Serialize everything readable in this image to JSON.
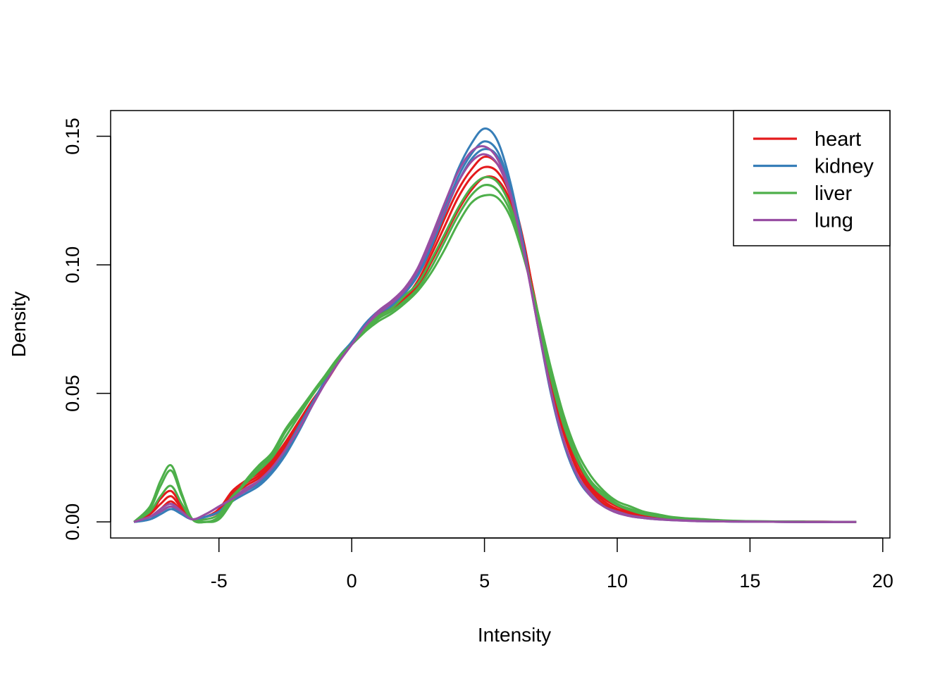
{
  "chart_data": {
    "type": "line",
    "title": "",
    "xlabel": "Intensity",
    "ylabel": "Density",
    "xlim": [
      -9,
      20
    ],
    "ylim": [
      0,
      0.16
    ],
    "xticks": [
      -5,
      0,
      5,
      10,
      15,
      20
    ],
    "xtick_labels": [
      "-5",
      "0",
      "5",
      "10",
      "15",
      "20"
    ],
    "yticks": [
      0,
      0.05,
      0.1,
      0.15
    ],
    "ytick_labels": [
      "0.00",
      "0.05",
      "0.10",
      "0.15"
    ],
    "grid": false,
    "legend_position": "top-right",
    "legend": [
      {
        "label": "heart",
        "color": "#E41A1C"
      },
      {
        "label": "kidney",
        "color": "#377EB8"
      },
      {
        "label": "liver",
        "color": "#4DAF4A"
      },
      {
        "label": "lung",
        "color": "#984EA3"
      }
    ],
    "x": [
      -8.2,
      -7.6,
      -7.2,
      -6.8,
      -6.4,
      -6.0,
      -5.5,
      -5.0,
      -4.5,
      -4.0,
      -3.5,
      -3.0,
      -2.5,
      -2.0,
      -1.5,
      -1.0,
      -0.5,
      0.0,
      0.5,
      1.0,
      1.5,
      2.0,
      2.5,
      3.0,
      3.5,
      4.0,
      4.5,
      5.0,
      5.5,
      6.0,
      6.5,
      7.0,
      7.5,
      8.0,
      8.5,
      9.0,
      9.5,
      10.0,
      10.5,
      11.0,
      11.5,
      12.0,
      12.5,
      13.0,
      14.0,
      15.0,
      17.0,
      19.0
    ],
    "series": [
      {
        "group": "heart",
        "color": "#E41A1C",
        "values": [
          0.0,
          0.003,
          0.009,
          0.012,
          0.006,
          0.001,
          0.002,
          0.005,
          0.012,
          0.016,
          0.019,
          0.024,
          0.031,
          0.039,
          0.047,
          0.054,
          0.062,
          0.07,
          0.076,
          0.08,
          0.083,
          0.087,
          0.092,
          0.101,
          0.111,
          0.121,
          0.129,
          0.134,
          0.133,
          0.124,
          0.106,
          0.082,
          0.057,
          0.037,
          0.023,
          0.014,
          0.009,
          0.006,
          0.004,
          0.003,
          0.002,
          0.0015,
          0.001,
          0.0008,
          0.0004,
          0.0002,
          0.0001,
          0.0
        ]
      },
      {
        "group": "heart",
        "color": "#E41A1C",
        "values": [
          0.0,
          0.003,
          0.007,
          0.01,
          0.005,
          0.001,
          0.002,
          0.004,
          0.011,
          0.015,
          0.018,
          0.023,
          0.03,
          0.038,
          0.046,
          0.054,
          0.062,
          0.069,
          0.075,
          0.08,
          0.083,
          0.087,
          0.094,
          0.104,
          0.115,
          0.126,
          0.134,
          0.138,
          0.136,
          0.126,
          0.107,
          0.081,
          0.055,
          0.035,
          0.021,
          0.013,
          0.008,
          0.005,
          0.0035,
          0.0025,
          0.0018,
          0.0012,
          0.0009,
          0.0006,
          0.0003,
          0.0002,
          0.0001,
          0.0
        ]
      },
      {
        "group": "heart",
        "color": "#E41A1C",
        "values": [
          0.0,
          0.002,
          0.005,
          0.008,
          0.004,
          0.001,
          0.002,
          0.004,
          0.01,
          0.014,
          0.017,
          0.022,
          0.029,
          0.037,
          0.046,
          0.055,
          0.063,
          0.069,
          0.075,
          0.08,
          0.084,
          0.089,
          0.096,
          0.106,
          0.118,
          0.129,
          0.137,
          0.142,
          0.139,
          0.128,
          0.108,
          0.08,
          0.054,
          0.034,
          0.02,
          0.012,
          0.007,
          0.0045,
          0.003,
          0.002,
          0.0014,
          0.001,
          0.0007,
          0.0005,
          0.0003,
          0.0001,
          0.0,
          0.0
        ]
      },
      {
        "group": "kidney",
        "color": "#377EB8",
        "values": [
          0.0,
          0.001,
          0.003,
          0.005,
          0.003,
          0.001,
          0.002,
          0.004,
          0.008,
          0.011,
          0.014,
          0.019,
          0.026,
          0.035,
          0.045,
          0.055,
          0.064,
          0.07,
          0.077,
          0.082,
          0.085,
          0.09,
          0.098,
          0.11,
          0.123,
          0.137,
          0.147,
          0.153,
          0.148,
          0.131,
          0.106,
          0.077,
          0.05,
          0.03,
          0.017,
          0.01,
          0.006,
          0.0035,
          0.0022,
          0.0015,
          0.001,
          0.0007,
          0.0005,
          0.0003,
          0.0002,
          0.0001,
          0.0,
          0.0
        ]
      },
      {
        "group": "kidney",
        "color": "#377EB8",
        "values": [
          0.0,
          0.001,
          0.004,
          0.006,
          0.003,
          0.001,
          0.002,
          0.004,
          0.009,
          0.012,
          0.015,
          0.02,
          0.027,
          0.036,
          0.045,
          0.055,
          0.063,
          0.07,
          0.076,
          0.081,
          0.085,
          0.09,
          0.097,
          0.108,
          0.121,
          0.134,
          0.143,
          0.148,
          0.144,
          0.129,
          0.105,
          0.077,
          0.051,
          0.031,
          0.018,
          0.011,
          0.006,
          0.004,
          0.0025,
          0.0017,
          0.0012,
          0.0008,
          0.0006,
          0.0004,
          0.0002,
          0.0001,
          0.0,
          0.0
        ]
      },
      {
        "group": "kidney",
        "color": "#377EB8",
        "values": [
          0.0,
          0.001,
          0.003,
          0.005,
          0.003,
          0.001,
          0.002,
          0.004,
          0.009,
          0.012,
          0.015,
          0.02,
          0.028,
          0.037,
          0.046,
          0.055,
          0.063,
          0.069,
          0.076,
          0.081,
          0.084,
          0.089,
          0.096,
          0.107,
          0.12,
          0.132,
          0.141,
          0.145,
          0.142,
          0.128,
          0.105,
          0.077,
          0.051,
          0.031,
          0.018,
          0.011,
          0.006,
          0.004,
          0.0025,
          0.0017,
          0.0012,
          0.0008,
          0.0006,
          0.0004,
          0.0002,
          0.0001,
          0.0,
          0.0
        ]
      },
      {
        "group": "liver",
        "color": "#4DAF4A",
        "values": [
          0.0,
          0.006,
          0.016,
          0.022,
          0.011,
          0.001,
          0.0,
          0.001,
          0.008,
          0.016,
          0.022,
          0.027,
          0.036,
          0.043,
          0.05,
          0.057,
          0.064,
          0.069,
          0.074,
          0.078,
          0.081,
          0.085,
          0.09,
          0.097,
          0.106,
          0.116,
          0.124,
          0.127,
          0.126,
          0.118,
          0.102,
          0.082,
          0.06,
          0.041,
          0.027,
          0.018,
          0.012,
          0.008,
          0.006,
          0.004,
          0.003,
          0.002,
          0.0015,
          0.0012,
          0.0006,
          0.0003,
          0.0001,
          0.0
        ]
      },
      {
        "group": "liver",
        "color": "#4DAF4A",
        "values": [
          0.0,
          0.005,
          0.014,
          0.02,
          0.01,
          0.001,
          0.0,
          0.002,
          0.009,
          0.015,
          0.021,
          0.026,
          0.035,
          0.042,
          0.05,
          0.057,
          0.064,
          0.069,
          0.074,
          0.079,
          0.082,
          0.086,
          0.091,
          0.099,
          0.109,
          0.119,
          0.127,
          0.131,
          0.129,
          0.12,
          0.103,
          0.081,
          0.058,
          0.039,
          0.025,
          0.016,
          0.011,
          0.007,
          0.005,
          0.0035,
          0.0025,
          0.0018,
          0.0013,
          0.001,
          0.0005,
          0.0003,
          0.0001,
          0.0
        ]
      },
      {
        "group": "liver",
        "color": "#4DAF4A",
        "values": [
          0.0,
          0.004,
          0.01,
          0.014,
          0.007,
          0.001,
          0.001,
          0.003,
          0.01,
          0.015,
          0.02,
          0.025,
          0.033,
          0.041,
          0.049,
          0.056,
          0.063,
          0.069,
          0.075,
          0.08,
          0.083,
          0.088,
          0.093,
          0.102,
          0.112,
          0.122,
          0.13,
          0.134,
          0.132,
          0.122,
          0.104,
          0.08,
          0.056,
          0.037,
          0.024,
          0.015,
          0.01,
          0.0065,
          0.0045,
          0.003,
          0.0022,
          0.0016,
          0.0012,
          0.0009,
          0.0005,
          0.0002,
          0.0001,
          0.0
        ]
      },
      {
        "group": "lung",
        "color": "#984EA3",
        "values": [
          0.0,
          0.002,
          0.004,
          0.006,
          0.004,
          0.001,
          0.003,
          0.006,
          0.009,
          0.013,
          0.016,
          0.021,
          0.028,
          0.036,
          0.045,
          0.054,
          0.062,
          0.069,
          0.076,
          0.082,
          0.086,
          0.091,
          0.099,
          0.111,
          0.124,
          0.136,
          0.144,
          0.146,
          0.141,
          0.127,
          0.104,
          0.077,
          0.051,
          0.031,
          0.018,
          0.01,
          0.006,
          0.0035,
          0.0022,
          0.0015,
          0.001,
          0.0007,
          0.0005,
          0.0003,
          0.0002,
          0.0001,
          0.0,
          0.0
        ]
      },
      {
        "group": "lung",
        "color": "#984EA3",
        "values": [
          0.0,
          0.002,
          0.005,
          0.007,
          0.004,
          0.001,
          0.003,
          0.006,
          0.009,
          0.012,
          0.016,
          0.021,
          0.028,
          0.036,
          0.045,
          0.054,
          0.062,
          0.069,
          0.076,
          0.081,
          0.085,
          0.09,
          0.098,
          0.109,
          0.121,
          0.132,
          0.14,
          0.143,
          0.139,
          0.126,
          0.104,
          0.077,
          0.051,
          0.031,
          0.018,
          0.011,
          0.006,
          0.004,
          0.0025,
          0.0017,
          0.0012,
          0.0008,
          0.0006,
          0.0004,
          0.0002,
          0.0001,
          0.0,
          0.0
        ]
      }
    ]
  }
}
